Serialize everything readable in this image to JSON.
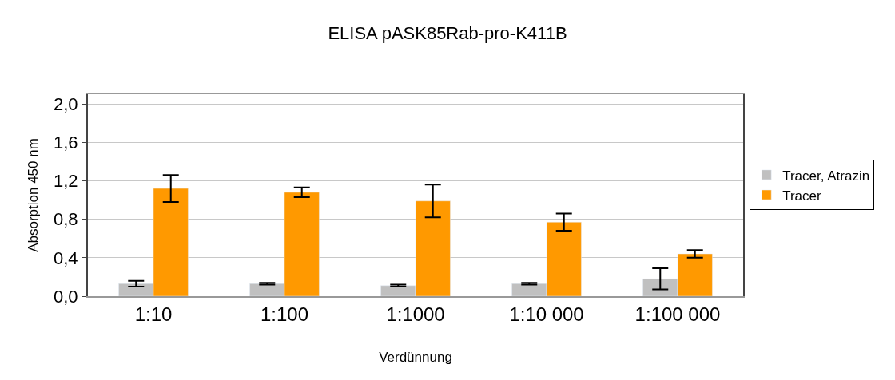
{
  "chart_data": {
    "type": "bar",
    "title": "ELISA pASK85Rab-pro-K411B",
    "xlabel": "Verdünnung",
    "ylabel": "Absorption 450 nm",
    "categories": [
      "1:10",
      "1:100",
      "1:1000",
      "1:10 000",
      "1:100 000"
    ],
    "series": [
      {
        "name": "Tracer, Atrazin",
        "color": "#c0c0c0",
        "values": [
          0.13,
          0.13,
          0.11,
          0.13,
          0.18
        ],
        "errors": [
          0.03,
          0.01,
          0.01,
          0.01,
          0.11
        ]
      },
      {
        "name": "Tracer",
        "color": "#ff9900",
        "values": [
          1.12,
          1.08,
          0.99,
          0.77,
          0.44
        ],
        "errors": [
          0.14,
          0.05,
          0.17,
          0.09,
          0.04
        ]
      }
    ],
    "ylim": [
      0,
      2.1
    ],
    "yticks": [
      {
        "value": 0,
        "label": "0,0"
      },
      {
        "value": 0.4,
        "label": "0,4"
      },
      {
        "value": 0.8,
        "label": "0,8"
      },
      {
        "value": 1.2,
        "label": "1,2"
      },
      {
        "value": 1.6,
        "label": "1,6"
      },
      {
        "value": 2.0,
        "label": "2,0"
      }
    ],
    "grid": "y",
    "legend": "right"
  }
}
